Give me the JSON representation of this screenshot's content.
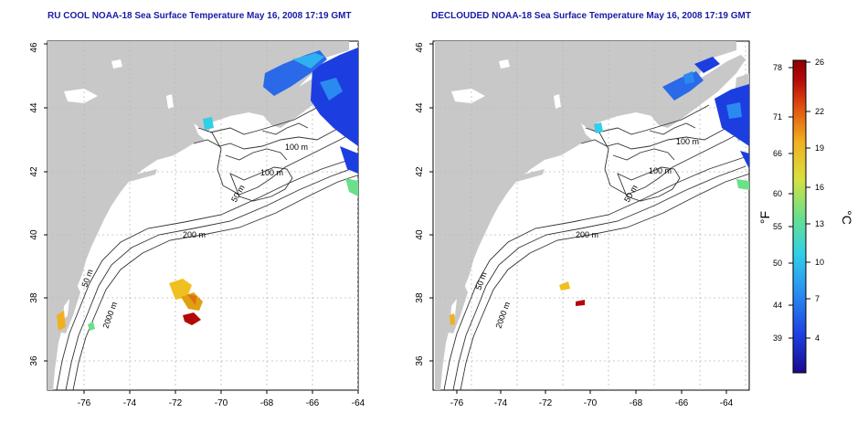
{
  "maps": [
    {
      "title": "RU COOL NOAA-18 Sea Surface Temperature May 16, 2008 17:19 GMT",
      "x_ticks": [
        "-76",
        "-74",
        "-72",
        "-70",
        "-68",
        "-66",
        "-64"
      ],
      "y_ticks": [
        "36",
        "38",
        "40",
        "42",
        "44",
        "46"
      ],
      "contour_labels": [
        "100 m",
        "100 m",
        "50 m",
        "200 m",
        "50 m",
        "2000 m"
      ]
    },
    {
      "title": "DECLOUDED NOAA-18 Sea Surface Temperature May 16, 2008 17:19 GMT",
      "x_ticks": [
        "-76",
        "-74",
        "-72",
        "-70",
        "-68",
        "-66",
        "-64"
      ],
      "y_ticks": [
        "36",
        "38",
        "40",
        "42",
        "44",
        "46"
      ],
      "contour_labels": [
        "100 m",
        "100 m",
        "50 m",
        "200 m",
        "50 m",
        "2000 m"
      ]
    }
  ],
  "colorbar": {
    "fahrenheit_unit": "°F",
    "celsius_unit": "°C",
    "fahrenheit_ticks": [
      "78",
      "71",
      "66",
      "60",
      "55",
      "50",
      "44",
      "39"
    ],
    "celsius_ticks": [
      "26",
      "22",
      "19",
      "16",
      "13",
      "10",
      "7",
      "4"
    ],
    "colors": [
      "#1a0a8c",
      "#1c3ee0",
      "#2a8af0",
      "#2fd0e8",
      "#6ae08a",
      "#d8e040",
      "#f0b020",
      "#e05010",
      "#b40808",
      "#8a0000"
    ]
  },
  "colors": {
    "land": "#c8c8c8",
    "contour": "#333333",
    "title": "#1a1aa6"
  }
}
